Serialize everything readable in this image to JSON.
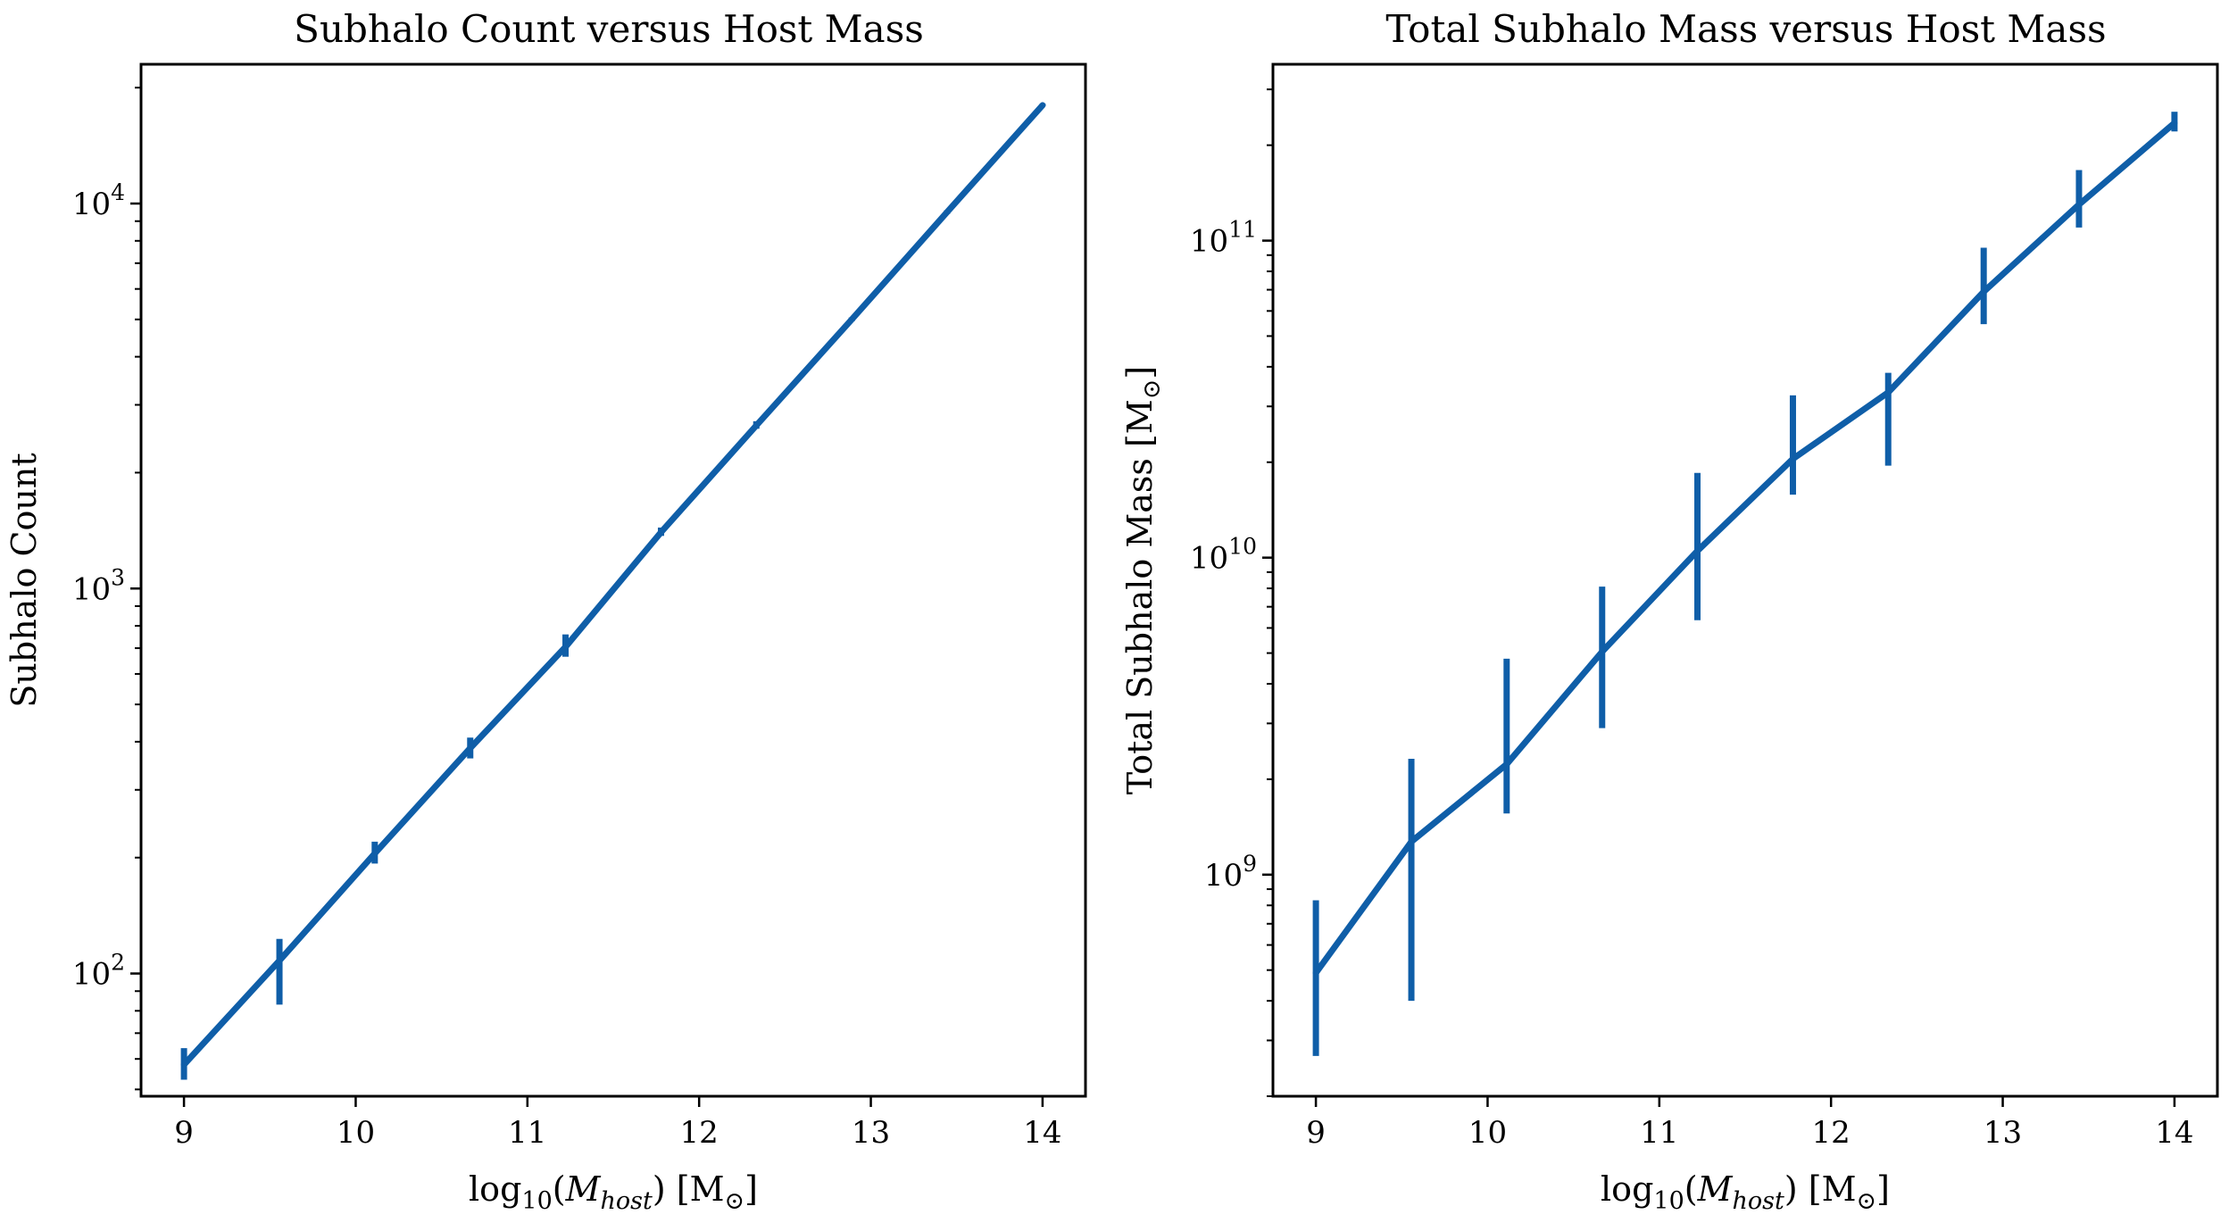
{
  "chart_data": [
    {
      "type": "line",
      "title": "Subhalo Count versus Host Mass",
      "xlabel": "log10(Mhost) [M⊙]",
      "ylabel": "Subhalo Count",
      "yscale": "log",
      "xlim": [
        8.75,
        14.25
      ],
      "ylim": [
        48,
        23000
      ],
      "xticks": [
        "9",
        "10",
        "11",
        "12",
        "13",
        "14"
      ],
      "yticks": [
        {
          "base": "10",
          "exp": "2",
          "value": 100
        },
        {
          "base": "10",
          "exp": "3",
          "value": 1000
        },
        {
          "base": "10",
          "exp": "4",
          "value": 10000
        }
      ],
      "grid": false,
      "color": "#0f5ea8",
      "series": [
        {
          "x": [
            9.0,
            9.556,
            10.111,
            10.667,
            11.222,
            11.778,
            12.333,
            12.889,
            13.444,
            14.0
          ],
          "y": [
            58,
            108,
            205,
            385,
            705,
            1400,
            2650,
            5000,
            9500,
            18000
          ],
          "yerr_low": [
            53,
            83,
            193,
            362,
            665,
            1370,
            2600,
            4950,
            9400,
            17900
          ],
          "yerr_high": [
            64,
            123,
            220,
            410,
            760,
            1440,
            2720,
            5060,
            9600,
            18150
          ]
        }
      ]
    },
    {
      "type": "line",
      "title": "Total Subhalo Mass versus Host Mass",
      "xlabel": "log10(Mhost) [M⊙]",
      "ylabel": "Total Subhalo Mass [M⊙]",
      "yscale": "log",
      "xlim": [
        8.75,
        14.25
      ],
      "ylim": [
        200000000,
        360000000000
      ],
      "xticks": [
        "9",
        "10",
        "11",
        "12",
        "13",
        "14"
      ],
      "yticks": [
        {
          "base": "10",
          "exp": "9",
          "value": 1000000000
        },
        {
          "base": "10",
          "exp": "10",
          "value": 10000000000
        },
        {
          "base": "10",
          "exp": "11",
          "value": 100000000000
        }
      ],
      "grid": false,
      "color": "#0f5ea8",
      "series": [
        {
          "x": [
            9.0,
            9.556,
            10.111,
            10.667,
            11.222,
            11.778,
            12.333,
            12.889,
            13.444,
            14.0
          ],
          "y": [
            490000000,
            1270000000,
            2230000000,
            5050000000,
            10500000000,
            20500000000,
            33200000000,
            69000000000,
            130000000000,
            235000000000
          ],
          "yerr_low": [
            268000000,
            400000000,
            1560000000,
            2900000000,
            6350000000,
            15800000000,
            19500000000,
            54500000000,
            110000000000,
            221000000000
          ],
          "yerr_high": [
            830000000,
            2320000000,
            4800000000,
            8100000000,
            18500000000,
            32500000000,
            38300000000,
            95000000000,
            167000000000,
            255000000000
          ]
        }
      ]
    }
  ]
}
